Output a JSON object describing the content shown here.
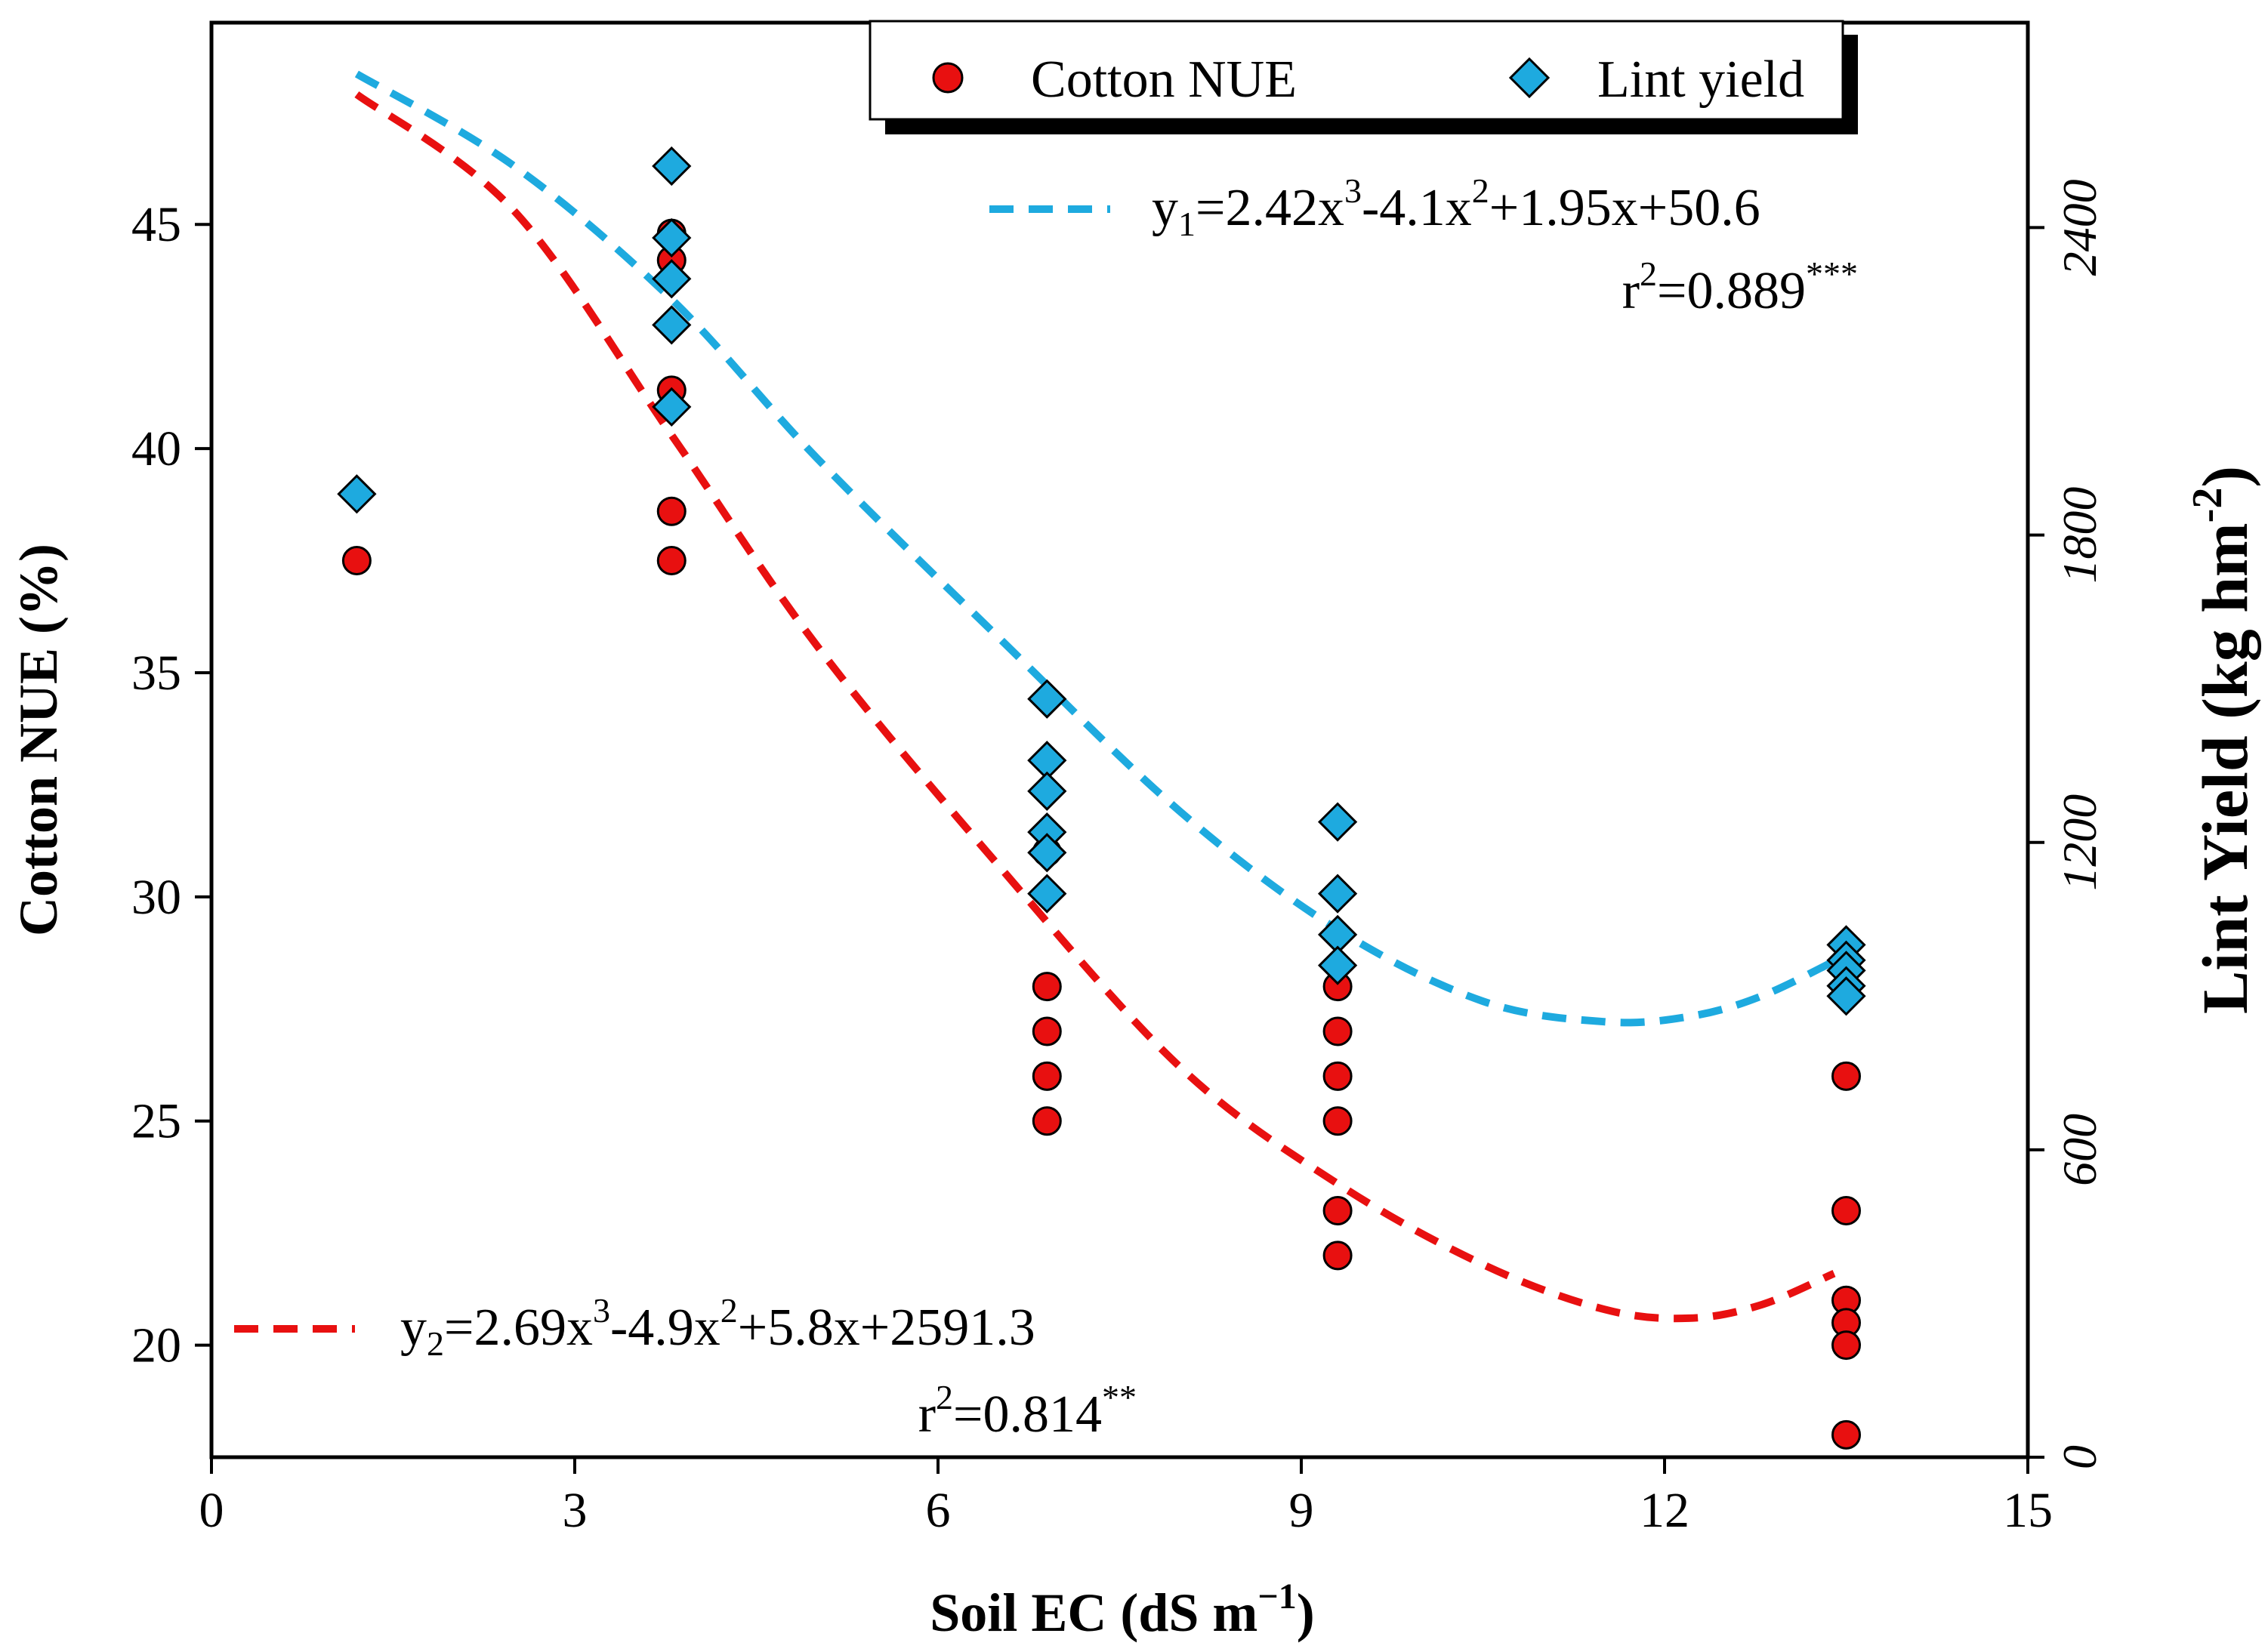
{
  "chart_data": {
    "type": "scatter",
    "xlabel_main": "Soil EC (dS m",
    "xlabel_sup": "−1",
    "xlabel_close": ")",
    "ylabel_left": "Cotton NUE (%)",
    "ylabel_right_main": "Lint Yield (kg hm",
    "ylabel_right_sup": "-2",
    "ylabel_right_close": ")",
    "xlim": [
      0,
      15
    ],
    "ylim_left": [
      17.5,
      49.5
    ],
    "ylim_right": [
      0,
      2800
    ],
    "x_ticks": [
      0,
      3,
      6,
      9,
      12,
      15
    ],
    "x_tick_labels": [
      "0",
      "3",
      "6",
      "9",
      "12",
      "15"
    ],
    "y_left_ticks": [
      20,
      25,
      30,
      35,
      40,
      45
    ],
    "y_left_tick_labels": [
      "20",
      "25",
      "30",
      "35",
      "40",
      "45"
    ],
    "y_right_ticks": [
      0,
      600,
      1200,
      1800,
      2400
    ],
    "y_right_tick_labels": [
      "0",
      "600",
      "1200",
      "1800",
      "2400"
    ],
    "legend": {
      "position": "top-right",
      "items": [
        {
          "label": "Cotton NUE",
          "marker": "circle",
          "color": "#e81010"
        },
        {
          "label": "Lint yield",
          "marker": "diamond",
          "color": "#1eaadf"
        }
      ]
    },
    "series": [
      {
        "name": "Cotton NUE",
        "axis": "left",
        "color": "#e81010",
        "marker": "circle",
        "points": [
          [
            1.2,
            37.5
          ],
          [
            3.8,
            44.8
          ],
          [
            3.8,
            44.2
          ],
          [
            3.8,
            41.3
          ],
          [
            3.8,
            38.6
          ],
          [
            3.8,
            37.5
          ],
          [
            6.9,
            31.0
          ],
          [
            6.9,
            28.0
          ],
          [
            6.9,
            27.0
          ],
          [
            6.9,
            26.0
          ],
          [
            6.9,
            25.0
          ],
          [
            9.3,
            28.0
          ],
          [
            9.3,
            27.0
          ],
          [
            9.3,
            26.0
          ],
          [
            9.3,
            25.0
          ],
          [
            9.3,
            23.0
          ],
          [
            9.3,
            22.0
          ],
          [
            13.5,
            26.0
          ],
          [
            13.5,
            23.0
          ],
          [
            13.5,
            21.0
          ],
          [
            13.5,
            20.5
          ],
          [
            13.5,
            20.0
          ],
          [
            13.5,
            18.0
          ]
        ],
        "fit": {
          "color": "#e81010",
          "points": [
            [
              1.2,
              47.9
            ],
            [
              2.5,
              45.3
            ],
            [
              3.8,
              40.3
            ],
            [
              5.0,
              35.6
            ],
            [
              6.5,
              30.7
            ],
            [
              8.0,
              26.2
            ],
            [
              9.3,
              23.6
            ],
            [
              10.5,
              21.8
            ],
            [
              11.5,
              20.8
            ],
            [
              12.2,
              20.6
            ],
            [
              12.8,
              20.9
            ],
            [
              13.4,
              21.6
            ]
          ]
        },
        "equation": {
          "y": "y",
          "sub": "2",
          "a": "=2.69x",
          "e3": "3",
          "b": "-4.9x",
          "e2": "2",
          "c": "+5.8x+2591.3"
        },
        "r2": {
          "r": "r",
          "sup": "2",
          "val": "=0.814",
          "stars": "**"
        }
      },
      {
        "name": "Lint yield",
        "axis": "right",
        "color": "#1eaadf",
        "marker": "diamond",
        "points": [
          [
            1.2,
            1880
          ],
          [
            3.8,
            2520
          ],
          [
            3.8,
            2380
          ],
          [
            3.8,
            2300
          ],
          [
            3.8,
            2210
          ],
          [
            3.8,
            2050
          ],
          [
            6.9,
            1480
          ],
          [
            6.9,
            1360
          ],
          [
            6.9,
            1300
          ],
          [
            6.9,
            1220
          ],
          [
            6.9,
            1180
          ],
          [
            6.9,
            1100
          ],
          [
            9.3,
            1240
          ],
          [
            9.3,
            1100
          ],
          [
            9.3,
            1020
          ],
          [
            9.3,
            960
          ],
          [
            13.5,
            1000
          ],
          [
            13.5,
            970
          ],
          [
            13.5,
            950
          ],
          [
            13.5,
            920
          ],
          [
            13.5,
            900
          ]
        ],
        "fit": {
          "color": "#1eaadf",
          "points": [
            [
              1.2,
              2700
            ],
            [
              2.5,
              2520
            ],
            [
              3.8,
              2260
            ],
            [
              5.0,
              1950
            ],
            [
              6.5,
              1600
            ],
            [
              8.0,
              1260
            ],
            [
              9.3,
              1030
            ],
            [
              10.5,
              890
            ],
            [
              11.5,
              850
            ],
            [
              12.2,
              860
            ],
            [
              12.8,
              900
            ],
            [
              13.5,
              980
            ]
          ]
        },
        "equation": {
          "y": "y",
          "sub": "1",
          "a": "=2.42x",
          "e3": "3",
          "b": "-4.1x",
          "e2": "2",
          "c": "+1.95x+50.6"
        },
        "r2": {
          "r": "r",
          "sup": "2",
          "val": "=0.889",
          "stars": "***"
        }
      }
    ]
  }
}
